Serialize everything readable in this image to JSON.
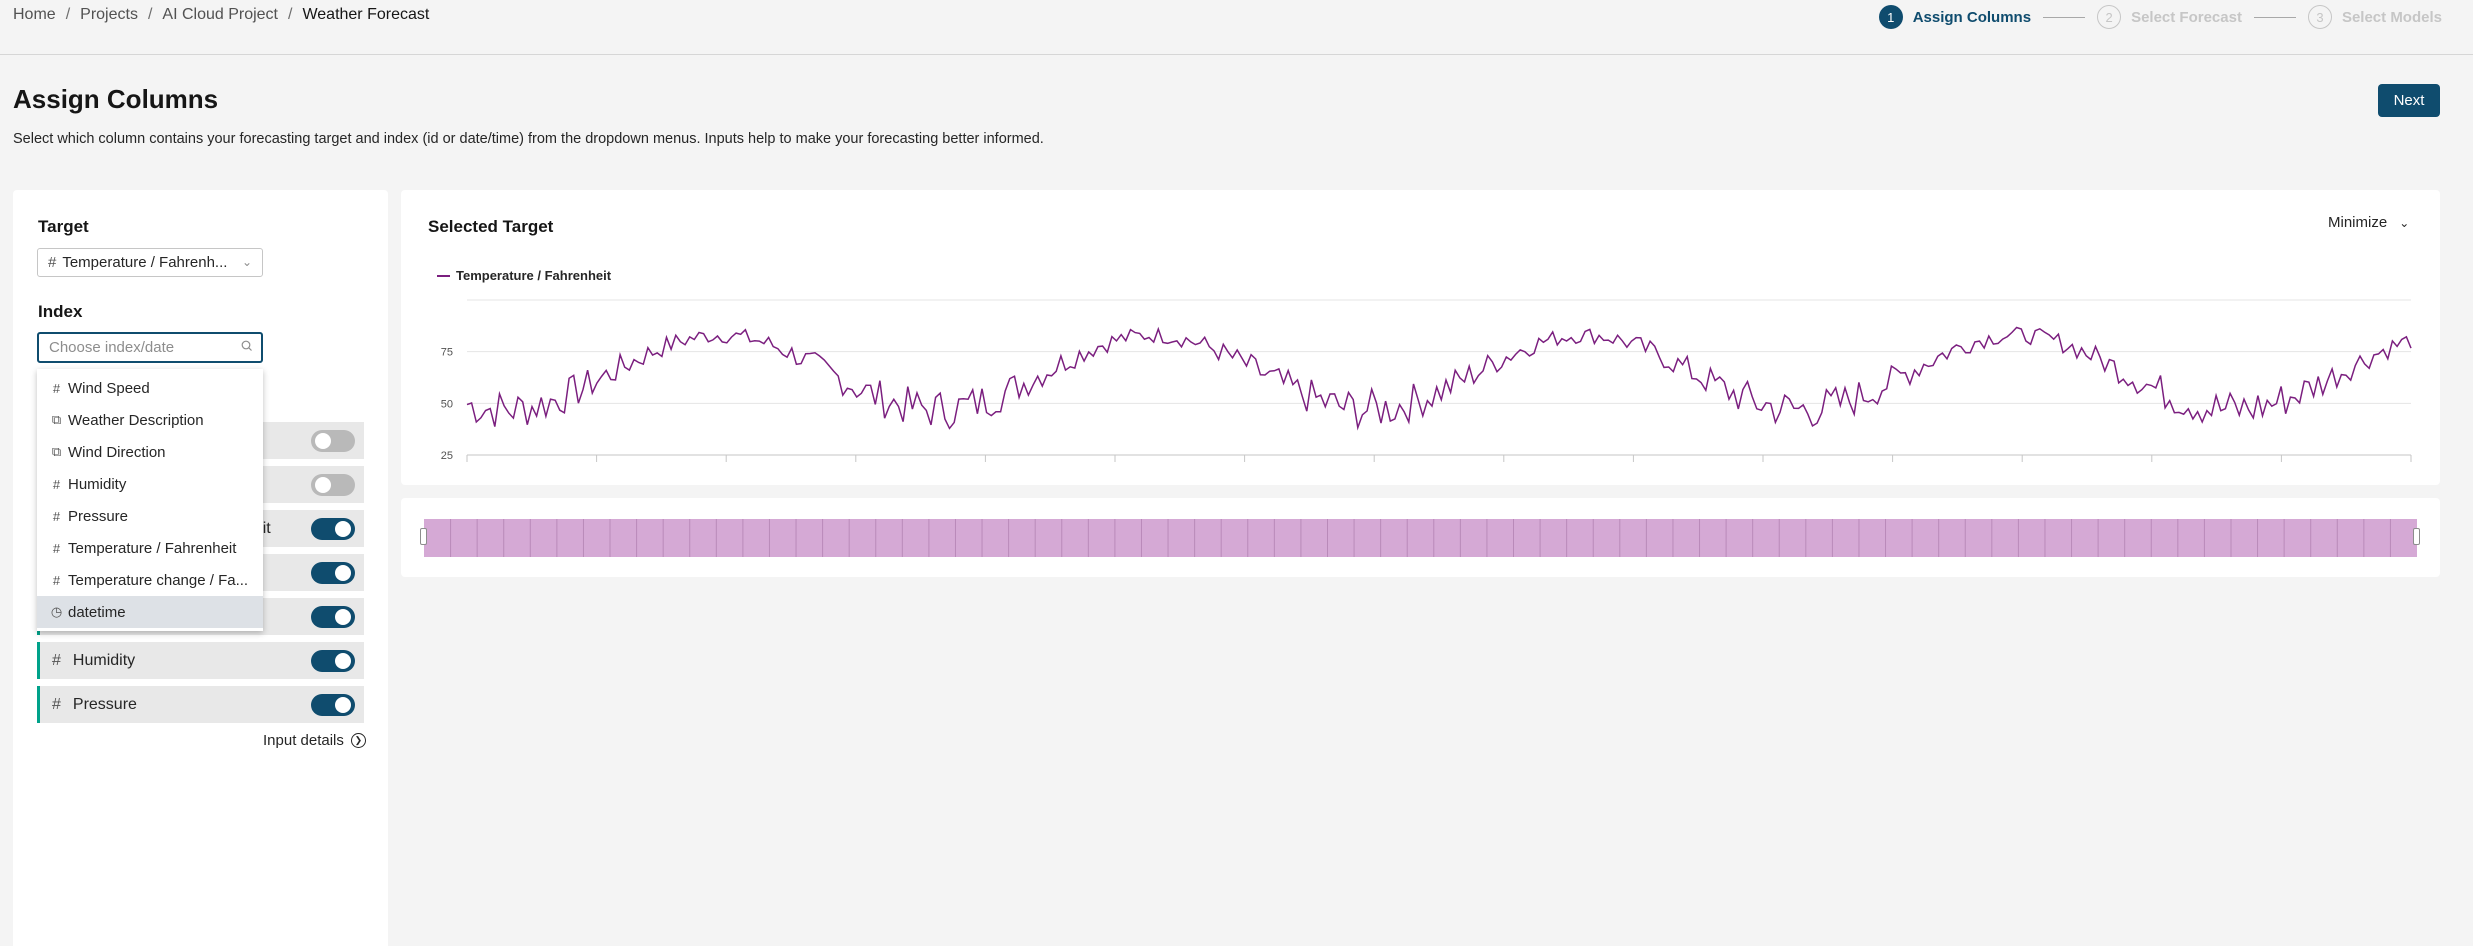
{
  "breadcrumb": {
    "home": "Home",
    "projects": "Projects",
    "project": "AI Cloud Project",
    "current": "Weather Forecast",
    "separator": "/"
  },
  "stepper": {
    "steps": [
      {
        "num": "1",
        "label": "Assign Columns"
      },
      {
        "num": "2",
        "label": "Select Forecast"
      },
      {
        "num": "3",
        "label": "Select Models"
      }
    ]
  },
  "header": {
    "title": "Assign Columns",
    "description": "Select which column contains your forecasting target and index (id or date/time) from the dropdown menus. Inputs help to make your forecasting better informed.",
    "next_label": "Next"
  },
  "left": {
    "target_label": "Target",
    "target_value": "Temperature / Fahrenh...",
    "index_label": "Index",
    "index_placeholder": "Choose index/date",
    "rows": [
      {
        "name": "",
        "on": false
      },
      {
        "name": "",
        "on": false
      },
      {
        "partial": "nheit",
        "on": true
      },
      {
        "name": "",
        "on": true
      },
      {
        "name": "",
        "on": true
      },
      {
        "name": "Humidity",
        "on": true
      },
      {
        "name": "Pressure",
        "on": true
      }
    ],
    "input_details": "Input details"
  },
  "dropdown": {
    "items": [
      {
        "icon": "hash-icon",
        "label": "Wind Speed"
      },
      {
        "icon": "text-icon",
        "label": "Weather Description"
      },
      {
        "icon": "text-icon",
        "label": "Wind Direction"
      },
      {
        "icon": "hash-icon",
        "label": "Humidity"
      },
      {
        "icon": "hash-icon",
        "label": "Pressure"
      },
      {
        "icon": "hash-icon",
        "label": "Temperature / Fahrenheit"
      },
      {
        "icon": "hash-icon",
        "label": "Temperature change / Fa..."
      },
      {
        "icon": "clock-icon",
        "label": "datetime"
      }
    ],
    "selected_index": 7
  },
  "chart_card": {
    "title": "Selected Target",
    "minimize_label": "Minimize"
  },
  "colors": {
    "accent": "#0f4c6e",
    "series": "#7b1f7f",
    "slider_fill": "#d5a9d5",
    "row_accent": "#00a28a"
  },
  "chart_data": {
    "type": "line",
    "series": [
      {
        "name": "Temperature / Fahrenheit",
        "color": "#7b1f7f"
      }
    ],
    "yticks": [
      "75",
      "50",
      "25"
    ],
    "ylim": [
      25,
      100
    ],
    "grid": true,
    "legend": "top-left",
    "cycles": 4.5,
    "mean": 65,
    "amplitude": 18,
    "noise": 10,
    "points": 420
  }
}
